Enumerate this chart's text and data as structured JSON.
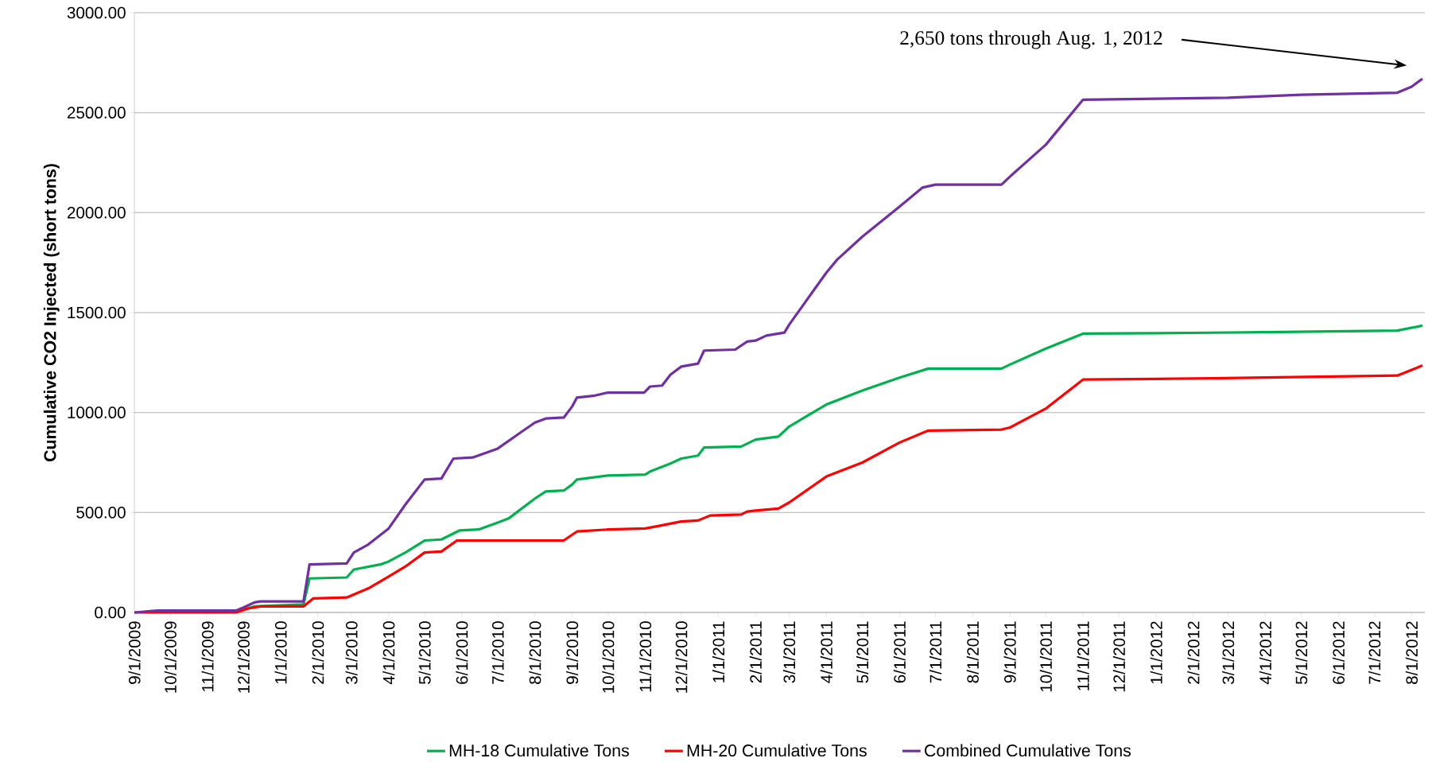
{
  "chart_data": {
    "type": "line",
    "ylabel": "**Cumulative CO2 Injected (short tons)**",
    "xlim": [
      "2009-09-01",
      "2012-08-12"
    ],
    "xticks": [
      {
        "value": "2009-09-01",
        "label": "9/1/2009"
      },
      {
        "value": "2009-10-01",
        "label": "10/1/2009"
      },
      {
        "value": "2009-11-01",
        "label": "11/1/2009"
      },
      {
        "value": "2009-12-01",
        "label": "12/1/2009"
      },
      {
        "value": "2010-01-01",
        "label": "1/1/2010"
      },
      {
        "value": "2010-02-01",
        "label": "2/1/2010"
      },
      {
        "value": "2010-03-01",
        "label": "3/1/2010"
      },
      {
        "value": "2010-04-01",
        "label": "4/1/2010"
      },
      {
        "value": "2010-05-01",
        "label": "5/1/2010"
      },
      {
        "value": "2010-06-01",
        "label": "6/1/2010"
      },
      {
        "value": "2010-07-01",
        "label": "7/1/2010"
      },
      {
        "value": "2010-08-01",
        "label": "8/1/2010"
      },
      {
        "value": "2010-09-01",
        "label": "9/1/2010"
      },
      {
        "value": "2010-10-01",
        "label": "10/1/2010"
      },
      {
        "value": "2010-11-01",
        "label": "11/1/2010"
      },
      {
        "value": "2010-12-01",
        "label": "12/1/2010"
      },
      {
        "value": "2011-01-01",
        "label": "1/1/2011"
      },
      {
        "value": "2011-02-01",
        "label": "2/1/2011"
      },
      {
        "value": "2011-03-01",
        "label": "3/1/2011"
      },
      {
        "value": "2011-04-01",
        "label": "4/1/2011"
      },
      {
        "value": "2011-05-01",
        "label": "5/1/2011"
      },
      {
        "value": "2011-06-01",
        "label": "6/1/2011"
      },
      {
        "value": "2011-07-01",
        "label": "7/1/2011"
      },
      {
        "value": "2011-08-01",
        "label": "8/1/2011"
      },
      {
        "value": "2011-09-01",
        "label": "9/1/2011"
      },
      {
        "value": "2011-10-01",
        "label": "10/1/2011"
      },
      {
        "value": "2011-11-01",
        "label": "11/1/2011"
      },
      {
        "value": "2011-12-01",
        "label": "12/1/2011"
      },
      {
        "value": "2012-01-01",
        "label": "1/1/2012"
      },
      {
        "value": "2012-02-01",
        "label": "2/1/2012"
      },
      {
        "value": "2012-03-01",
        "label": "3/1/2012"
      },
      {
        "value": "2012-04-01",
        "label": "4/1/2012"
      },
      {
        "value": "2012-05-01",
        "label": "5/1/2012"
      },
      {
        "value": "2012-06-01",
        "label": "6/1/2012"
      },
      {
        "value": "2012-07-01",
        "label": "7/1/2012"
      },
      {
        "value": "2012-08-01",
        "label": "8/1/2012"
      }
    ],
    "ylim": [
      0,
      3000
    ],
    "yticks": [
      {
        "value": 0,
        "label": "0.00"
      },
      {
        "value": 500,
        "label": "500.00"
      },
      {
        "value": 1000,
        "label": "1000.00"
      },
      {
        "value": 1500,
        "label": "1500.00"
      },
      {
        "value": 2000,
        "label": "2000.00"
      },
      {
        "value": 2500,
        "label": "2500.00"
      },
      {
        "value": 3000,
        "label": "3000.00"
      }
    ],
    "grid": "y",
    "legend": "bottom",
    "marker": "none",
    "line_style": "solid",
    "annotations": [
      "2,650 tons through Aug. 1, 2012"
    ],
    "series": [
      {
        "name": "MH-18 Cumulative Tons",
        "color": "#00b050",
        "x": [
          "2009-11-25",
          "2009-12-10",
          "2010-01-20",
          "2010-01-25",
          "2010-02-25",
          "2010-03-03",
          "2010-03-25",
          "2010-04-01",
          "2010-04-15",
          "2010-05-01",
          "2010-05-15",
          "2010-05-30",
          "2010-06-15",
          "2010-07-01",
          "2010-07-10",
          "2010-08-01",
          "2010-08-10",
          "2010-08-25",
          "2010-09-01",
          "2010-09-05",
          "2010-10-01",
          "2010-11-01",
          "2010-11-05",
          "2010-11-22",
          "2010-12-01",
          "2010-12-15",
          "2010-12-20",
          "2011-01-20",
          "2011-02-01",
          "2011-02-20",
          "2011-03-01",
          "2011-04-01",
          "2011-05-01",
          "2011-06-01",
          "2011-06-25",
          "2011-08-25",
          "2011-09-01",
          "2011-10-01",
          "2011-11-01",
          "2012-01-01",
          "2012-04-01",
          "2012-07-20",
          "2012-08-10"
        ],
        "values": [
          5,
          30,
          40,
          170,
          175,
          215,
          240,
          255,
          300,
          360,
          365,
          410,
          415,
          450,
          470,
          570,
          605,
          610,
          640,
          665,
          685,
          690,
          705,
          745,
          770,
          785,
          825,
          830,
          865,
          880,
          930,
          1040,
          1110,
          1175,
          1220,
          1220,
          1240,
          1320,
          1395,
          1397,
          1402,
          1410,
          1435
        ]
      },
      {
        "name": "MH-20 Cumulative Tons",
        "color": "#ff0000",
        "x": [
          "2009-09-01",
          "2009-11-25",
          "2009-12-05",
          "2009-12-15",
          "2010-01-20",
          "2010-01-28",
          "2010-02-25",
          "2010-03-15",
          "2010-04-01",
          "2010-04-15",
          "2010-05-01",
          "2010-05-15",
          "2010-05-28",
          "2010-08-25",
          "2010-09-05",
          "2010-10-01",
          "2010-11-01",
          "2010-11-10",
          "2010-12-01",
          "2010-12-15",
          "2010-12-25",
          "2011-01-20",
          "2011-01-25",
          "2011-02-01",
          "2011-02-20",
          "2011-03-01",
          "2011-04-01",
          "2011-05-01",
          "2011-06-01",
          "2011-06-25",
          "2011-08-25",
          "2011-09-01",
          "2011-10-01",
          "2011-11-01",
          "2012-01-01",
          "2012-04-01",
          "2012-07-20",
          "2012-08-10"
        ],
        "values": [
          0,
          0,
          20,
          30,
          30,
          70,
          75,
          120,
          180,
          230,
          300,
          305,
          360,
          360,
          405,
          415,
          420,
          430,
          455,
          460,
          485,
          490,
          505,
          510,
          520,
          550,
          680,
          750,
          850,
          910,
          915,
          925,
          1020,
          1165,
          1168,
          1175,
          1185,
          1235
        ]
      },
      {
        "name": "Combined Cumulative Tons",
        "color": "#7030a0",
        "x": [
          "2009-09-01",
          "2009-09-20",
          "2009-11-25",
          "2009-12-01",
          "2009-12-10",
          "2009-12-15",
          "2010-01-20",
          "2010-01-25",
          "2010-02-25",
          "2010-03-03",
          "2010-03-15",
          "2010-04-01",
          "2010-04-15",
          "2010-05-01",
          "2010-05-15",
          "2010-05-25",
          "2010-06-10",
          "2010-07-01",
          "2010-07-20",
          "2010-08-01",
          "2010-08-10",
          "2010-08-25",
          "2010-09-01",
          "2010-09-05",
          "2010-09-20",
          "2010-10-01",
          "2010-10-31",
          "2010-11-05",
          "2010-11-15",
          "2010-11-22",
          "2010-12-01",
          "2010-12-15",
          "2010-12-20",
          "2011-01-15",
          "2011-01-25",
          "2011-02-01",
          "2011-02-10",
          "2011-02-25",
          "2011-03-01",
          "2011-04-01",
          "2011-04-10",
          "2011-05-01",
          "2011-06-01",
          "2011-06-20",
          "2011-07-01",
          "2011-08-25",
          "2011-09-01",
          "2011-10-01",
          "2011-11-01",
          "2012-01-01",
          "2012-03-01",
          "2012-05-01",
          "2012-07-20",
          "2012-08-01",
          "2012-08-10"
        ],
        "values": [
          0,
          10,
          10,
          25,
          50,
          55,
          55,
          240,
          245,
          300,
          340,
          420,
          540,
          665,
          670,
          770,
          775,
          820,
          900,
          950,
          970,
          975,
          1030,
          1075,
          1085,
          1100,
          1100,
          1130,
          1135,
          1190,
          1230,
          1245,
          1310,
          1315,
          1355,
          1360,
          1385,
          1400,
          1440,
          1700,
          1765,
          1880,
          2030,
          2125,
          2140,
          2140,
          2180,
          2340,
          2565,
          2570,
          2575,
          2590,
          2600,
          2630,
          2670
        ]
      }
    ]
  }
}
